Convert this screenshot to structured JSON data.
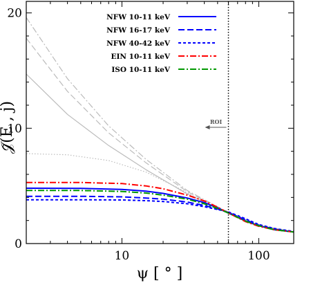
{
  "chart_data": {
    "type": "line",
    "xlabel": "ψ [ ° ]",
    "ylabel": "𝒥̃(E , j)",
    "x_scale": "log",
    "xlim": [
      2,
      180
    ],
    "ylim": [
      0,
      21
    ],
    "x_ticks": [
      {
        "value": 10,
        "label": "10"
      },
      {
        "value": 100,
        "label": "100"
      }
    ],
    "y_ticks": [
      {
        "value": 0,
        "label": "0"
      },
      {
        "value": 10,
        "label": "10"
      },
      {
        "value": 20,
        "label": "20"
      }
    ],
    "grid": false,
    "legend_position": "top-right",
    "roi": {
      "label": "ROI",
      "x": 60
    },
    "series": [
      {
        "name": "NFW 10-11 keV",
        "color": "#0000ff",
        "dash": "solid",
        "legend": true,
        "points": [
          [
            2,
            4.8
          ],
          [
            5,
            4.79
          ],
          [
            10,
            4.7
          ],
          [
            15,
            4.55
          ],
          [
            20,
            4.35
          ],
          [
            30,
            3.95
          ],
          [
            40,
            3.55
          ],
          [
            50,
            3.1
          ],
          [
            60,
            2.65
          ],
          [
            80,
            1.95
          ],
          [
            100,
            1.55
          ],
          [
            130,
            1.2
          ],
          [
            180,
            1.0
          ]
        ]
      },
      {
        "name": "NFW 16-17 keV",
        "color": "#0000ff",
        "dash": "long-dash",
        "legend": true,
        "points": [
          [
            2,
            4.1
          ],
          [
            5,
            4.1
          ],
          [
            10,
            4.05
          ],
          [
            15,
            3.95
          ],
          [
            20,
            3.85
          ],
          [
            30,
            3.6
          ],
          [
            40,
            3.3
          ],
          [
            50,
            3.0
          ],
          [
            60,
            2.7
          ],
          [
            80,
            2.05
          ],
          [
            100,
            1.6
          ],
          [
            130,
            1.25
          ],
          [
            180,
            1.0
          ]
        ]
      },
      {
        "name": "NFW 40-42 keV",
        "color": "#0000ff",
        "dash": "short-dash",
        "legend": true,
        "points": [
          [
            2,
            3.8
          ],
          [
            5,
            3.8
          ],
          [
            10,
            3.78
          ],
          [
            15,
            3.72
          ],
          [
            20,
            3.65
          ],
          [
            30,
            3.45
          ],
          [
            40,
            3.2
          ],
          [
            50,
            2.95
          ],
          [
            60,
            2.75
          ],
          [
            80,
            2.15
          ],
          [
            100,
            1.65
          ],
          [
            130,
            1.3
          ],
          [
            180,
            1.05
          ]
        ]
      },
      {
        "name": "EIN 10-11 keV",
        "color": "#ff0000",
        "dash": "dash-dot",
        "legend": true,
        "points": [
          [
            2,
            5.3
          ],
          [
            5,
            5.3
          ],
          [
            10,
            5.2
          ],
          [
            15,
            5.0
          ],
          [
            20,
            4.75
          ],
          [
            30,
            4.2
          ],
          [
            40,
            3.7
          ],
          [
            50,
            3.15
          ],
          [
            60,
            2.65
          ],
          [
            80,
            1.9
          ],
          [
            100,
            1.5
          ],
          [
            130,
            1.2
          ],
          [
            180,
            1.0
          ]
        ]
      },
      {
        "name": "ISO 10-11 keV",
        "color": "#009900",
        "dash": "dash-dot",
        "legend": true,
        "points": [
          [
            2,
            4.6
          ],
          [
            5,
            4.6
          ],
          [
            10,
            4.52
          ],
          [
            15,
            4.38
          ],
          [
            20,
            4.2
          ],
          [
            30,
            3.85
          ],
          [
            40,
            3.45
          ],
          [
            50,
            3.05
          ],
          [
            60,
            2.65
          ],
          [
            80,
            1.95
          ],
          [
            100,
            1.55
          ],
          [
            130,
            1.2
          ],
          [
            180,
            1.0
          ]
        ]
      },
      {
        "name": "",
        "color": "#bbbbbb",
        "dash": "solid",
        "legend": false,
        "points": [
          [
            2,
            14.7
          ],
          [
            4,
            11.2
          ],
          [
            8,
            8.5
          ],
          [
            15,
            6.4
          ],
          [
            30,
            4.3
          ],
          [
            60,
            2.6
          ],
          [
            100,
            1.55
          ],
          [
            180,
            1.0
          ]
        ]
      },
      {
        "name": "",
        "color": "#bbbbbb",
        "dash": "long-dash",
        "legend": false,
        "points": [
          [
            2,
            17.8
          ],
          [
            4,
            13.2
          ],
          [
            8,
            9.6
          ],
          [
            15,
            7.0
          ],
          [
            30,
            4.5
          ],
          [
            60,
            2.65
          ],
          [
            100,
            1.6
          ],
          [
            180,
            1.0
          ]
        ]
      },
      {
        "name": "",
        "color": "#bbbbbb",
        "dash": "dash-dot",
        "legend": false,
        "points": [
          [
            2,
            19.6
          ],
          [
            4,
            14.3
          ],
          [
            8,
            10.2
          ],
          [
            15,
            7.3
          ],
          [
            30,
            4.6
          ],
          [
            60,
            2.7
          ],
          [
            100,
            1.6
          ],
          [
            180,
            1.0
          ]
        ]
      },
      {
        "name": "",
        "color": "#bbbbbb",
        "dash": "dotted",
        "legend": false,
        "points": [
          [
            2,
            7.8
          ],
          [
            4,
            7.7
          ],
          [
            8,
            7.2
          ],
          [
            15,
            6.2
          ],
          [
            25,
            4.9
          ],
          [
            40,
            3.6
          ],
          [
            60,
            2.7
          ],
          [
            100,
            1.6
          ],
          [
            180,
            1.0
          ]
        ]
      }
    ]
  }
}
